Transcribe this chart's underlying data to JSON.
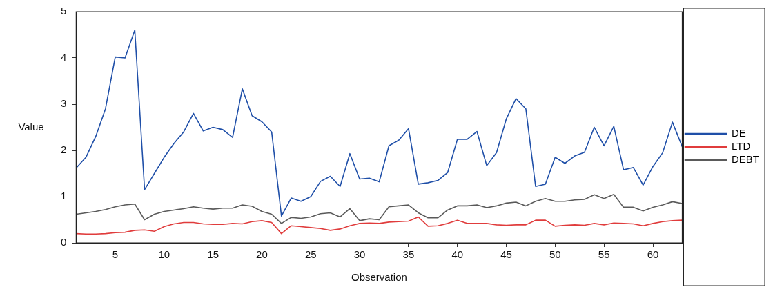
{
  "chart_data": {
    "type": "line",
    "xlabel": "Observation",
    "ylabel": "Value",
    "x": [
      1,
      2,
      3,
      4,
      5,
      6,
      7,
      8,
      9,
      10,
      11,
      12,
      13,
      14,
      15,
      16,
      17,
      18,
      19,
      20,
      21,
      22,
      23,
      24,
      25,
      26,
      27,
      28,
      29,
      30,
      31,
      32,
      33,
      34,
      35,
      36,
      37,
      38,
      39,
      40,
      41,
      42,
      43,
      44,
      45,
      46,
      47,
      48,
      49,
      50,
      51,
      52,
      53,
      54,
      55,
      56,
      57,
      58,
      59,
      60,
      61,
      62,
      63
    ],
    "xlim": [
      1,
      63
    ],
    "xticks": [
      5,
      10,
      15,
      20,
      25,
      30,
      35,
      40,
      45,
      50,
      55,
      60
    ],
    "ylim": [
      0,
      5
    ],
    "yticks": [
      0,
      1,
      2,
      3,
      4,
      5
    ],
    "grid": false,
    "legend": "right",
    "marker": "none",
    "line_style": "solid",
    "series": [
      {
        "name": "DE",
        "color": "#1f4fa8",
        "values": [
          1.62,
          1.85,
          2.3,
          2.9,
          4.02,
          4.0,
          4.6,
          1.15,
          1.5,
          1.85,
          2.15,
          2.4,
          2.8,
          2.42,
          2.5,
          2.45,
          2.28,
          3.33,
          2.75,
          2.62,
          2.4,
          0.58,
          0.97,
          0.9,
          1.0,
          1.33,
          1.44,
          1.22,
          1.93,
          1.38,
          1.4,
          1.32,
          2.1,
          2.22,
          2.47,
          1.27,
          1.3,
          1.35,
          1.52,
          2.24,
          2.24,
          2.41,
          1.67,
          1.95,
          2.68,
          3.12,
          2.9,
          1.22,
          1.27,
          1.85,
          1.72,
          1.88,
          1.96,
          2.5,
          2.1,
          2.52,
          1.58,
          1.63,
          1.25,
          1.65,
          1.95,
          2.61,
          2.08
        ]
      },
      {
        "name": "LTD",
        "color": "#e03c3c",
        "values": [
          0.2,
          0.19,
          0.19,
          0.2,
          0.22,
          0.23,
          0.27,
          0.28,
          0.25,
          0.35,
          0.41,
          0.44,
          0.44,
          0.41,
          0.4,
          0.4,
          0.42,
          0.41,
          0.46,
          0.48,
          0.44,
          0.2,
          0.37,
          0.35,
          0.33,
          0.31,
          0.27,
          0.3,
          0.37,
          0.42,
          0.43,
          0.42,
          0.45,
          0.46,
          0.47,
          0.56,
          0.36,
          0.37,
          0.42,
          0.49,
          0.42,
          0.42,
          0.42,
          0.39,
          0.38,
          0.39,
          0.39,
          0.49,
          0.49,
          0.36,
          0.38,
          0.39,
          0.38,
          0.42,
          0.39,
          0.43,
          0.42,
          0.41,
          0.37,
          0.42,
          0.46,
          0.48,
          0.49
        ]
      },
      {
        "name": "DEBT",
        "color": "#5a5a5a",
        "values": [
          0.62,
          0.65,
          0.68,
          0.72,
          0.78,
          0.82,
          0.84,
          0.5,
          0.62,
          0.68,
          0.71,
          0.74,
          0.78,
          0.75,
          0.73,
          0.75,
          0.75,
          0.82,
          0.79,
          0.68,
          0.62,
          0.42,
          0.55,
          0.53,
          0.56,
          0.63,
          0.65,
          0.56,
          0.74,
          0.48,
          0.52,
          0.5,
          0.78,
          0.8,
          0.82,
          0.65,
          0.54,
          0.54,
          0.71,
          0.8,
          0.8,
          0.82,
          0.76,
          0.8,
          0.86,
          0.88,
          0.8,
          0.9,
          0.96,
          0.9,
          0.9,
          0.93,
          0.94,
          1.04,
          0.96,
          1.05,
          0.77,
          0.77,
          0.69,
          0.77,
          0.82,
          0.89,
          0.85
        ]
      }
    ]
  }
}
